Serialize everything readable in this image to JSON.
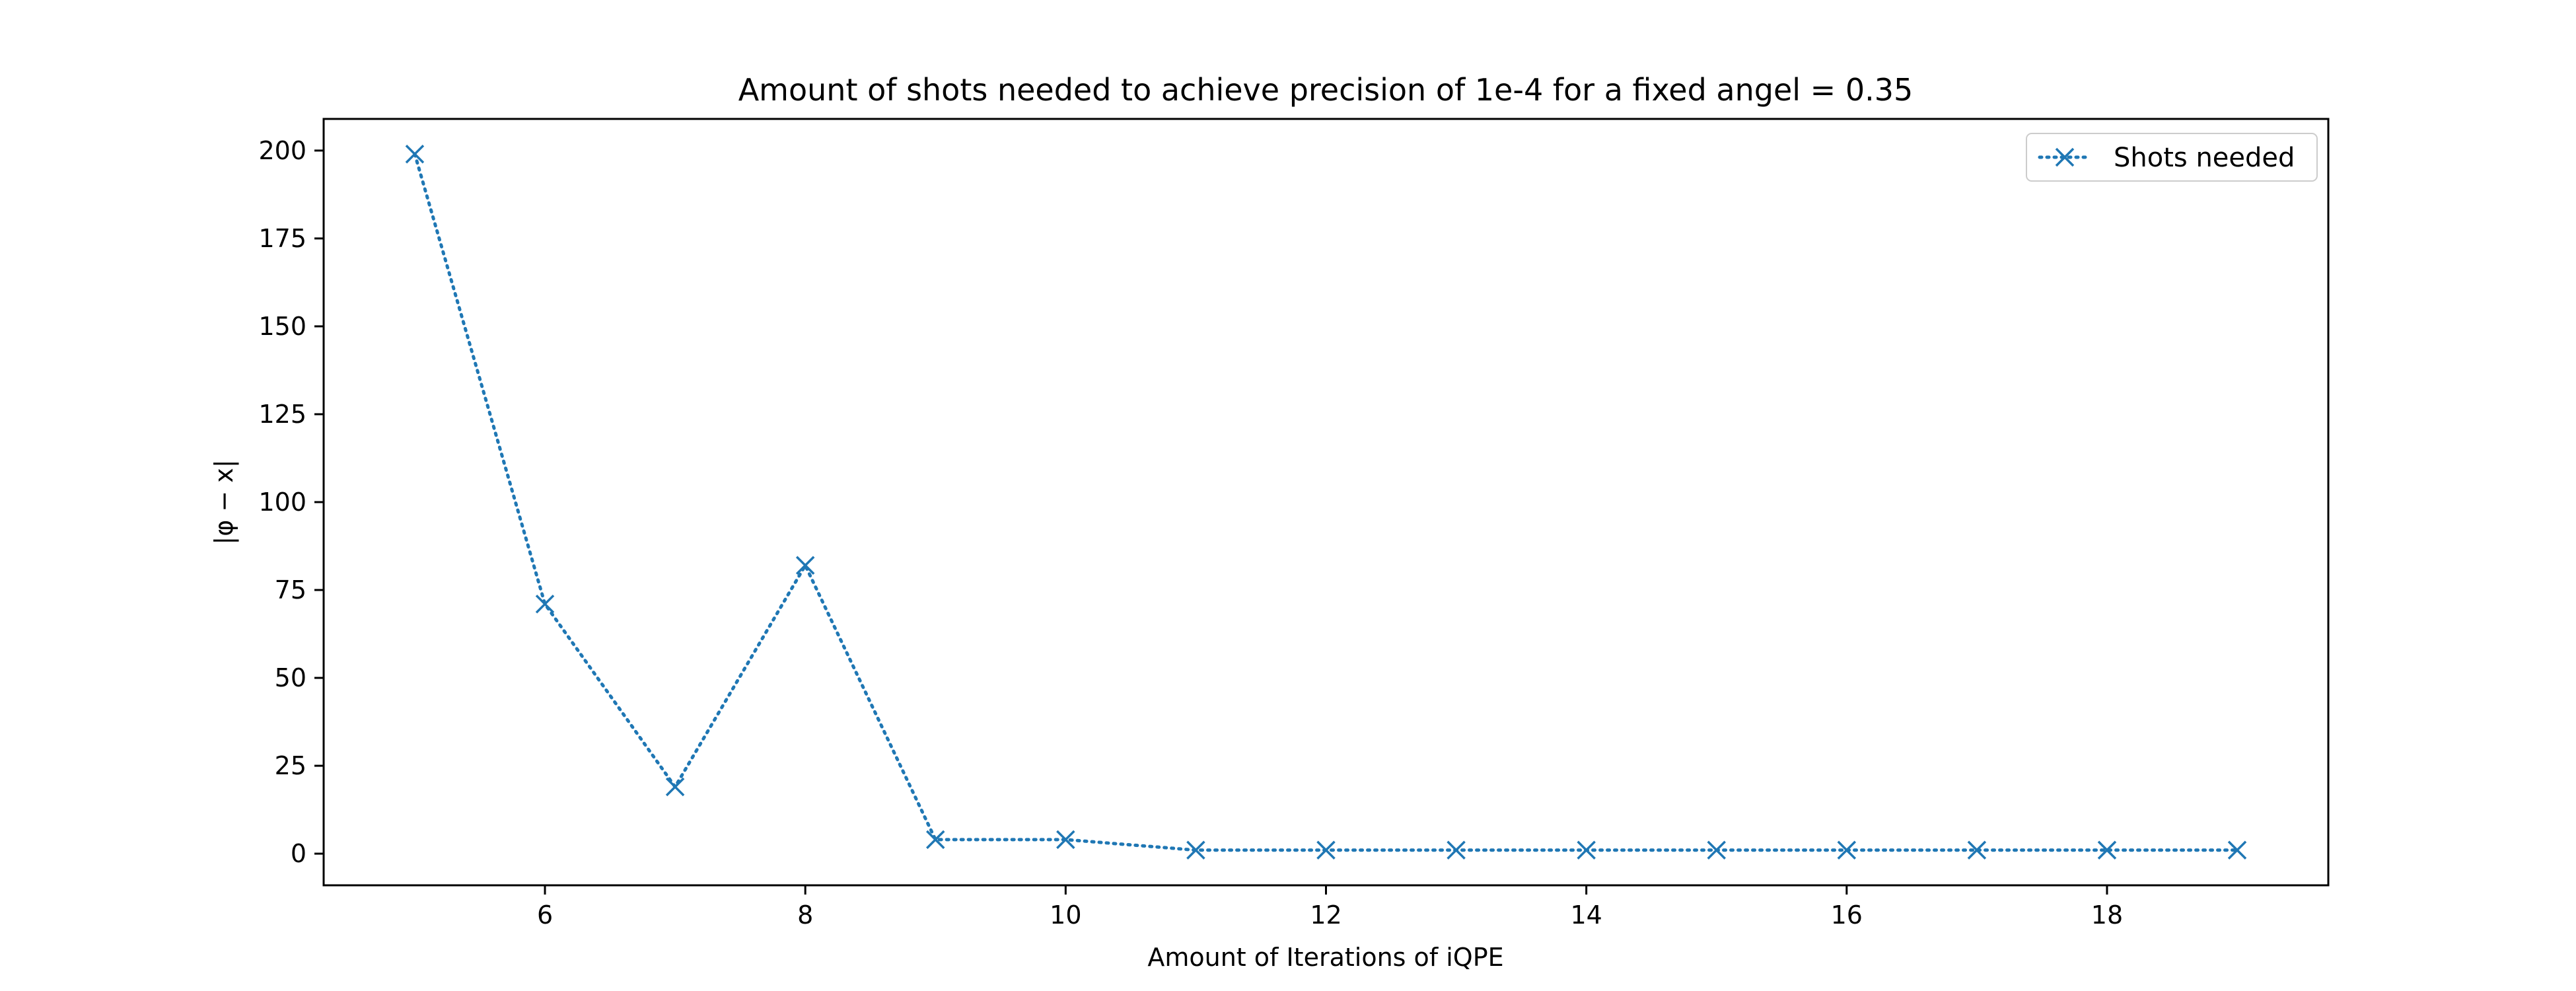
{
  "chart_data": {
    "type": "line",
    "title": "Amount of shots needed to achieve precision of 1e-4 for a fixed angel = 0.35",
    "xlabel": "Amount of Iterations of iQPE",
    "ylabel": "|φ − x|",
    "x": [
      5,
      6,
      7,
      8,
      9,
      10,
      11,
      12,
      13,
      14,
      15,
      16,
      17,
      18,
      19
    ],
    "series": [
      {
        "name": "Shots needed",
        "values": [
          199,
          71,
          19,
          82,
          4,
          4,
          1,
          1,
          1,
          1,
          1,
          1,
          1,
          1,
          1
        ],
        "color": "#1f77b4",
        "marker": "x",
        "linestyle": "dotted"
      }
    ],
    "xlim": [
      4.3,
      19.7
    ],
    "ylim": [
      -9.0,
      209.0
    ],
    "xticks": [
      6,
      8,
      10,
      12,
      14,
      16,
      18
    ],
    "xtick_labels": [
      "6",
      "8",
      "10",
      "12",
      "14",
      "16",
      "18"
    ],
    "yticks": [
      0,
      25,
      50,
      75,
      100,
      125,
      150,
      175,
      200
    ],
    "ytick_labels": [
      "0",
      "25",
      "50",
      "75",
      "100",
      "125",
      "150",
      "175",
      "200"
    ],
    "grid": false,
    "legend_position": "top-right"
  }
}
